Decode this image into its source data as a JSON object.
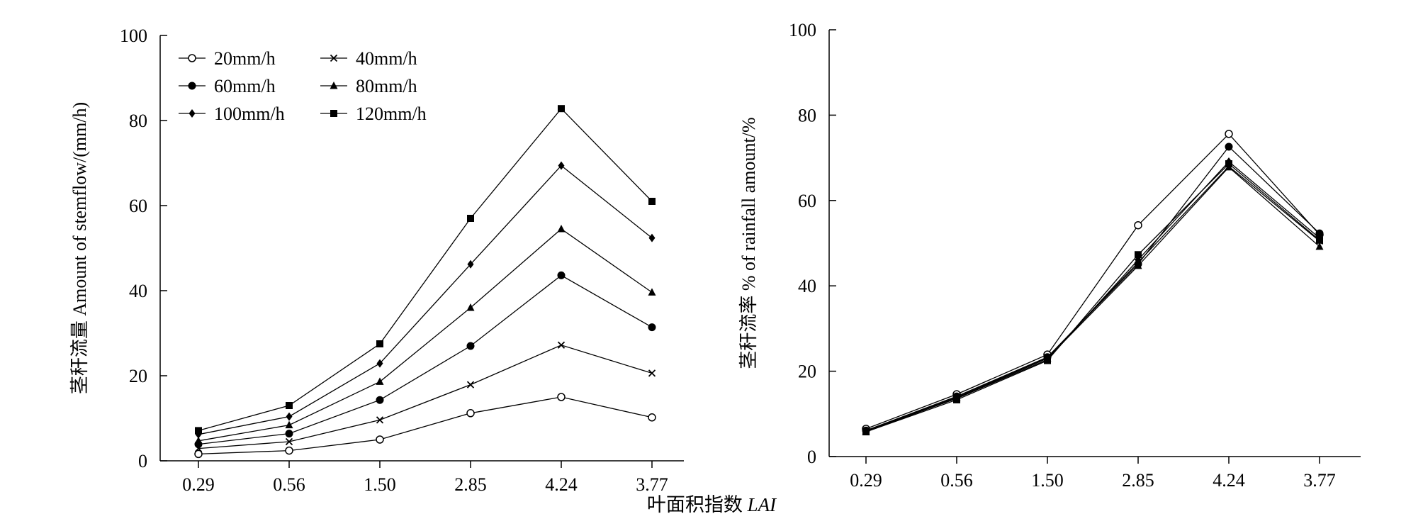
{
  "shared_xlabel": {
    "prefix": "叶面积指数",
    "italic": "LAI"
  },
  "chart_data": [
    {
      "type": "line",
      "title": "",
      "xlabel": "",
      "ylabel": "茎秆流量 Amount of stemflow/(mm/h)",
      "categories": [
        "0.29",
        "0.56",
        "1.50",
        "2.85",
        "4.24",
        "3.77"
      ],
      "ylim": [
        0,
        100
      ],
      "yticks": [
        0,
        20,
        40,
        60,
        80,
        100
      ],
      "grid": false,
      "legend": "top-left",
      "series": [
        {
          "name": "20mm/h",
          "marker": "circle-open",
          "values": [
            1.6,
            2.4,
            5.0,
            11.2,
            15.0,
            10.2
          ]
        },
        {
          "name": "40mm/h",
          "marker": "x",
          "values": [
            2.9,
            4.5,
            9.6,
            17.9,
            27.2,
            20.6
          ]
        },
        {
          "name": "60mm/h",
          "marker": "circle",
          "values": [
            3.9,
            6.4,
            14.3,
            27.0,
            43.6,
            31.4
          ]
        },
        {
          "name": "80mm/h",
          "marker": "triangle",
          "values": [
            4.7,
            8.4,
            18.6,
            36.0,
            54.5,
            39.6
          ]
        },
        {
          "name": "100mm/h",
          "marker": "diamond",
          "values": [
            6.2,
            10.4,
            22.9,
            46.2,
            69.4,
            52.4
          ]
        },
        {
          "name": "120mm/h",
          "marker": "square",
          "values": [
            7.1,
            13.0,
            27.5,
            57.0,
            82.8,
            61.0
          ]
        }
      ]
    },
    {
      "type": "line",
      "title": "",
      "xlabel": "",
      "ylabel": "茎秆流率 % of rainfall amount/%",
      "categories": [
        "0.29",
        "0.56",
        "1.50",
        "2.85",
        "4.24",
        "3.77"
      ],
      "ylim": [
        0,
        100
      ],
      "yticks": [
        0,
        20,
        40,
        60,
        80,
        100
      ],
      "grid": false,
      "legend": "none",
      "series": [
        {
          "marker": "circle-open",
          "values": [
            6.5,
            14.6,
            23.9,
            54.2,
            75.6,
            52.0
          ]
        },
        {
          "marker": "x",
          "values": [
            6.0,
            13.9,
            23.2,
            45.5,
            68.0,
            50.5
          ]
        },
        {
          "marker": "circle",
          "values": [
            6.1,
            14.1,
            23.3,
            45.1,
            72.6,
            52.3
          ]
        },
        {
          "marker": "triangle",
          "values": [
            5.8,
            13.7,
            23.0,
            44.7,
            67.8,
            49.2
          ]
        },
        {
          "marker": "diamond",
          "values": [
            6.0,
            13.6,
            22.7,
            46.1,
            69.1,
            51.2
          ]
        },
        {
          "marker": "square",
          "values": [
            5.8,
            13.3,
            22.5,
            47.3,
            68.6,
            50.7
          ]
        }
      ]
    }
  ]
}
